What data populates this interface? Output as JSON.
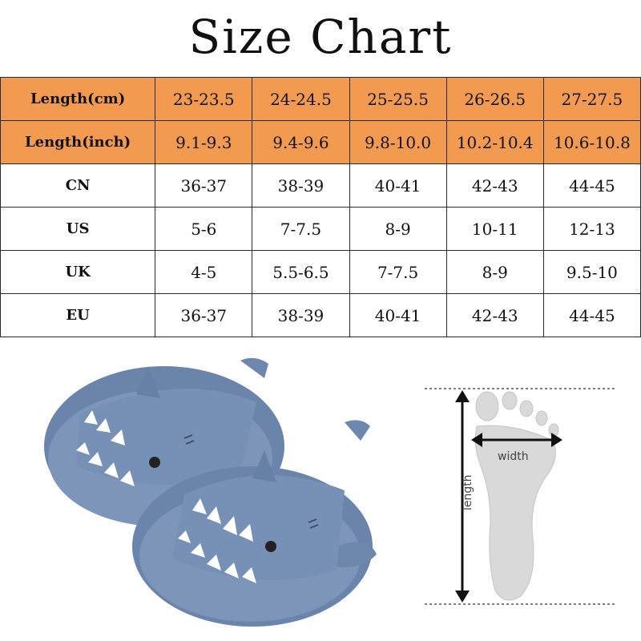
{
  "title": "Size Chart",
  "table": {
    "rows": [
      {
        "label": "Length(cm)",
        "values": [
          "23-23.5",
          "24-24.5",
          "25-25.5",
          "26-26.5",
          "27-27.5"
        ],
        "highlight": true
      },
      {
        "label": "Length(inch)",
        "values": [
          "9.1-9.3",
          "9.4-9.6",
          "9.8-10.0",
          "10.2-10.4",
          "10.6-10.8"
        ],
        "highlight": true
      },
      {
        "label": "CN",
        "values": [
          "36-37",
          "38-39",
          "40-41",
          "42-43",
          "44-45"
        ],
        "highlight": false
      },
      {
        "label": "US",
        "values": [
          "5-6",
          "7-7.5",
          "8-9",
          "10-11",
          "12-13"
        ],
        "highlight": false
      },
      {
        "label": "UK",
        "values": [
          "4-5",
          "5.5-6.5",
          "7-7.5",
          "8-9",
          "9.5-10"
        ],
        "highlight": false
      },
      {
        "label": "EU",
        "values": [
          "36-37",
          "38-39",
          "40-41",
          "42-43",
          "44-45"
        ],
        "highlight": false
      }
    ]
  },
  "diagram": {
    "width_label": "width",
    "length_label": "length"
  },
  "colors": {
    "header_fill": "#f29a4f",
    "slipper_blue": "#6e87ad",
    "foot_gray": "#d9d9d9"
  },
  "icons": [
    "shark-slippers-image",
    "foot-measure-diagram"
  ]
}
